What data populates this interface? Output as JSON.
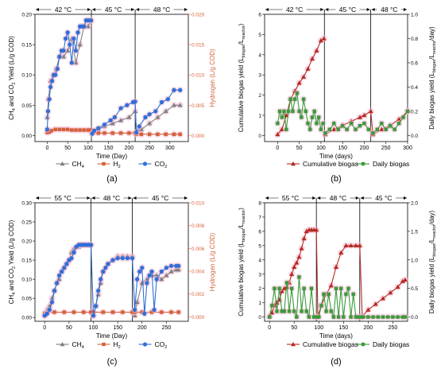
{
  "figure": {
    "panel_labels": [
      "(a)",
      "(b)",
      "(c)",
      "(d)"
    ]
  },
  "colors": {
    "ch4": "#7f7f7f",
    "h2": "#d4603a",
    "co2": "#2f6fd6",
    "cumulative": "#b5291f",
    "daily": "#3a9a3a",
    "halo": "#f3b8d2"
  },
  "chart_data": [
    {
      "id": "a",
      "type": "line",
      "panel": "(a)",
      "xlabel": "Time (Day)",
      "ylabel": "CH4 and CO2 Yield (L/g COD)",
      "ylabel_right": "Hydrogen (L/g COD)",
      "xlim": [
        -30,
        345
      ],
      "xticks": [
        0,
        50,
        100,
        150,
        200,
        250,
        300
      ],
      "ylim": [
        -0.01,
        0.2
      ],
      "yticks": [
        0.0,
        0.05,
        0.1,
        0.15,
        0.2
      ],
      "ylim_right": [
        -0.001,
        0.02
      ],
      "yticks_right": [
        0.0,
        0.005,
        0.01,
        0.015,
        0.02
      ],
      "y_decimals": 2,
      "y_right_decimals": 3,
      "phases": [
        {
          "label": "42 °C",
          "start": -30,
          "end": 108
        },
        {
          "label": "45 °C",
          "start": 108,
          "end": 215
        },
        {
          "label": "48 °C",
          "start": 215,
          "end": 345
        }
      ],
      "dividers": [
        108,
        215
      ],
      "legend": [
        {
          "key": "ch4",
          "label": "CH4"
        },
        {
          "key": "h2",
          "label": "H2"
        },
        {
          "key": "co2",
          "label": "CO2"
        }
      ],
      "series": [
        {
          "key": "ch4",
          "axis": "left",
          "marker": "triangle",
          "x": [
            0,
            3,
            8,
            15,
            22,
            30,
            40,
            50,
            60,
            70,
            80,
            90,
            100,
            107,
            110,
            125,
            140,
            160,
            180,
            200,
            215,
            218,
            230,
            250,
            270,
            290,
            310,
            325
          ],
          "y": [
            0.03,
            0.06,
            0.09,
            0.1,
            0.11,
            0.13,
            0.13,
            0.14,
            0.16,
            0.12,
            0.15,
            0.18,
            0.18,
            0.19,
            0.005,
            0.01,
            0.015,
            0.02,
            0.025,
            0.03,
            0.04,
            0.005,
            0.01,
            0.02,
            0.03,
            0.04,
            0.05,
            0.05
          ]
        },
        {
          "key": "h2",
          "axis": "right",
          "marker": "square",
          "x": [
            0,
            5,
            10,
            20,
            30,
            40,
            50,
            60,
            70,
            80,
            90,
            100,
            107,
            110,
            125,
            140,
            160,
            180,
            200,
            215,
            218,
            230,
            250,
            270,
            290,
            310,
            325
          ],
          "y": [
            0.0005,
            0.0006,
            0.0008,
            0.001,
            0.001,
            0.001,
            0.001,
            0.0009,
            0.0009,
            0.0009,
            0.0009,
            0.0009,
            0.0009,
            0.0004,
            0.0004,
            0.0004,
            0.0004,
            0.0004,
            0.0004,
            0.0004,
            0.0002,
            0.0002,
            0.0002,
            0.0002,
            0.0002,
            0.0002,
            0.0002
          ]
        },
        {
          "key": "co2",
          "axis": "left",
          "marker": "circle",
          "x": [
            0,
            2,
            5,
            8,
            12,
            16,
            20,
            25,
            30,
            35,
            40,
            45,
            50,
            55,
            60,
            65,
            70,
            75,
            80,
            85,
            90,
            95,
            100,
            107,
            110,
            115,
            125,
            140,
            155,
            165,
            180,
            195,
            210,
            215,
            218,
            225,
            240,
            250,
            265,
            280,
            295,
            310,
            325
          ],
          "y": [
            0.01,
            0.04,
            0.06,
            0.08,
            0.09,
            0.1,
            0.1,
            0.11,
            0.13,
            0.14,
            0.14,
            0.16,
            0.17,
            0.15,
            0.12,
            0.16,
            0.14,
            0.17,
            0.18,
            0.18,
            0.18,
            0.19,
            0.19,
            0.19,
            0.003,
            0.008,
            0.012,
            0.018,
            0.025,
            0.03,
            0.045,
            0.05,
            0.055,
            0.056,
            0.005,
            0.015,
            0.03,
            0.035,
            0.04,
            0.055,
            0.06,
            0.075,
            0.075
          ]
        }
      ]
    },
    {
      "id": "b",
      "type": "line",
      "panel": "(b)",
      "xlabel": "Time (days)",
      "ylabel": "Cumulative biogas yield (Lbiogas/Lreactor)",
      "ylabel_right": "Daily biogas yield (Lbiogas/Lreactor/day)",
      "xlim": [
        -30,
        300
      ],
      "xticks": [
        0,
        50,
        100,
        150,
        200,
        250,
        300
      ],
      "ylim": [
        -0.3,
        6
      ],
      "yticks": [
        0,
        1,
        2,
        3,
        4,
        5,
        6
      ],
      "ylim_right": [
        -0.05,
        1.0
      ],
      "yticks_right": [
        0.0,
        0.2,
        0.4,
        0.6,
        0.8,
        1.0
      ],
      "y_decimals": 0,
      "y_right_decimals": 1,
      "phases": [
        {
          "label": "42 °C",
          "start": -30,
          "end": 108
        },
        {
          "label": "45 °C",
          "start": 108,
          "end": 215
        },
        {
          "label": "48 °C",
          "start": 215,
          "end": 300
        }
      ],
      "dividers": [
        108,
        215
      ],
      "legend": [
        {
          "key": "cumulative",
          "label": "Cumulative biogas"
        },
        {
          "key": "daily",
          "label": "Daily biogas"
        }
      ],
      "series": [
        {
          "key": "cumulative",
          "axis": "left",
          "marker": "triangle",
          "x": [
            0,
            10,
            20,
            30,
            40,
            50,
            60,
            70,
            80,
            90,
            100,
            107,
            110,
            130,
            150,
            170,
            190,
            200,
            215,
            220,
            240,
            260,
            280,
            300
          ],
          "y": [
            0.05,
            0.3,
            1.0,
            1.8,
            2.2,
            2.6,
            2.9,
            3.3,
            3.8,
            4.2,
            4.7,
            4.8,
            0.05,
            0.3,
            0.5,
            0.7,
            0.9,
            1.0,
            1.2,
            0.05,
            0.3,
            0.5,
            0.8,
            1.2
          ]
        },
        {
          "key": "daily",
          "axis": "right",
          "marker": "square",
          "x": [
            0,
            5,
            10,
            15,
            20,
            25,
            30,
            35,
            40,
            45,
            50,
            55,
            60,
            65,
            70,
            75,
            80,
            85,
            90,
            95,
            100,
            105,
            110,
            120,
            130,
            140,
            150,
            160,
            170,
            180,
            190,
            200,
            210,
            220,
            230,
            240,
            250,
            260,
            270,
            280,
            290,
            300
          ],
          "y": [
            0.1,
            0.2,
            0.15,
            0.2,
            0.05,
            0.2,
            0.3,
            0.2,
            0.3,
            0.35,
            0.2,
            0.15,
            0.3,
            0.2,
            0.1,
            0.05,
            0.15,
            0.2,
            0.1,
            0.15,
            0.05,
            0.1,
            0.02,
            0.05,
            0.1,
            0.05,
            0.08,
            0.05,
            0.1,
            0.05,
            0.08,
            0.1,
            0.05,
            0.02,
            0.05,
            0.1,
            0.05,
            0.08,
            0.05,
            0.1,
            0.15,
            0.2
          ]
        }
      ]
    },
    {
      "id": "c",
      "type": "line",
      "panel": "(c)",
      "xlabel": "Time (Day)",
      "ylabel": "CH4 and CO2 Yield (L/g COD)",
      "ylabel_right": "Hydrogen (L/g COD)",
      "xlim": [
        -20,
        295
      ],
      "xticks": [
        0,
        50,
        100,
        150,
        200,
        250
      ],
      "ylim": [
        -0.01,
        0.3
      ],
      "yticks": [
        0.0,
        0.05,
        0.1,
        0.15,
        0.2,
        0.25,
        0.3
      ],
      "ylim_right": [
        -0.0004,
        0.01
      ],
      "yticks_right": [
        0.0,
        0.002,
        0.004,
        0.006,
        0.008,
        0.01
      ],
      "y_decimals": 2,
      "y_right_decimals": 3,
      "phases": [
        {
          "label": "55 °C",
          "start": -20,
          "end": 95
        },
        {
          "label": "48 °C",
          "start": 95,
          "end": 180
        },
        {
          "label": "45 °C",
          "start": 180,
          "end": 295
        }
      ],
      "dividers": [
        95,
        180
      ],
      "legend": [
        {
          "key": "ch4",
          "label": "CH4"
        },
        {
          "key": "h2",
          "label": "H2"
        },
        {
          "key": "co2",
          "label": "CO2"
        }
      ],
      "series": [
        {
          "key": "ch4",
          "axis": "left",
          "marker": "triangle",
          "x": [
            0,
            5,
            10,
            15,
            20,
            25,
            30,
            35,
            40,
            45,
            50,
            55,
            60,
            70,
            80,
            90,
            95,
            100,
            105,
            110,
            115,
            120,
            130,
            140,
            150,
            160,
            170,
            180,
            185,
            190,
            200,
            210,
            220,
            230,
            240,
            250,
            260,
            270,
            275
          ],
          "y": [
            0.005,
            0.02,
            0.03,
            0.05,
            0.07,
            0.09,
            0.1,
            0.12,
            0.13,
            0.14,
            0.15,
            0.17,
            0.18,
            0.185,
            0.19,
            0.19,
            0.19,
            0.005,
            0.03,
            0.06,
            0.09,
            0.12,
            0.14,
            0.15,
            0.16,
            0.16,
            0.16,
            0.16,
            0.005,
            0.04,
            0.09,
            0.1,
            0.11,
            0.11,
            0.1,
            0.11,
            0.12,
            0.125,
            0.125
          ]
        },
        {
          "key": "h2",
          "axis": "right",
          "marker": "square",
          "x": [
            0,
            20,
            40,
            60,
            80,
            95,
            100,
            120,
            140,
            160,
            180,
            185,
            200,
            220,
            240,
            260,
            275
          ],
          "y": [
            0.0003,
            0.0004,
            0.0004,
            0.0004,
            0.0004,
            0.0004,
            0.0004,
            0.0004,
            0.0004,
            0.0004,
            0.0004,
            0.0004,
            0.0004,
            0.0004,
            0.0004,
            0.0004,
            0.0004
          ]
        },
        {
          "key": "co2",
          "axis": "left",
          "marker": "circle",
          "x": [
            0,
            5,
            10,
            15,
            20,
            25,
            30,
            35,
            40,
            45,
            50,
            55,
            60,
            65,
            70,
            75,
            80,
            85,
            90,
            95,
            100,
            105,
            110,
            115,
            120,
            125,
            130,
            140,
            150,
            160,
            170,
            180,
            185,
            190,
            195,
            200,
            205,
            210,
            215,
            220,
            225,
            230,
            240,
            250,
            260,
            270,
            275
          ],
          "y": [
            0.005,
            0.01,
            0.02,
            0.04,
            0.07,
            0.09,
            0.11,
            0.12,
            0.13,
            0.14,
            0.15,
            0.155,
            0.17,
            0.185,
            0.19,
            0.19,
            0.19,
            0.19,
            0.19,
            0.19,
            0.005,
            0.03,
            0.07,
            0.1,
            0.12,
            0.13,
            0.14,
            0.15,
            0.155,
            0.155,
            0.155,
            0.155,
            0.02,
            0.1,
            0.12,
            0.13,
            0.01,
            0.09,
            0.11,
            0.12,
            0.02,
            0.1,
            0.12,
            0.13,
            0.135,
            0.135,
            0.135
          ]
        }
      ]
    },
    {
      "id": "d",
      "type": "line",
      "panel": "(d)",
      "xlabel": "Time (days)",
      "ylabel": "Cumulative biogas yield (Lbiogas/Lreactor)",
      "ylabel_right": "Daily biogas yield (Lbiogas/Lreactor/day)",
      "xlim": [
        -10,
        280
      ],
      "xticks": [
        0,
        50,
        100,
        150,
        200,
        250
      ],
      "ylim": [
        -0.3,
        8
      ],
      "yticks": [
        0,
        1,
        2,
        3,
        4,
        5,
        6,
        7,
        8
      ],
      "ylim_right": [
        -0.075,
        2.0
      ],
      "yticks_right": [
        0.0,
        0.5,
        1.0,
        1.5,
        2.0
      ],
      "y_decimals": 0,
      "y_right_decimals": 1,
      "phases": [
        {
          "label": "55 °C",
          "start": -10,
          "end": 95
        },
        {
          "label": "48 °C",
          "start": 95,
          "end": 183
        },
        {
          "label": "45 °C",
          "start": 183,
          "end": 280
        }
      ],
      "dividers": [
        95,
        183
      ],
      "legend": [
        {
          "key": "cumulative",
          "label": "Cumulative biogas"
        },
        {
          "key": "daily",
          "label": "Daily biogas"
        }
      ],
      "series": [
        {
          "key": "cumulative",
          "axis": "left",
          "marker": "triangle",
          "x": [
            0,
            5,
            10,
            15,
            20,
            25,
            30,
            35,
            40,
            45,
            50,
            55,
            60,
            65,
            70,
            75,
            80,
            85,
            90,
            95,
            98,
            105,
            115,
            125,
            135,
            145,
            155,
            165,
            175,
            183,
            188,
            200,
            215,
            230,
            245,
            260,
            270,
            275
          ],
          "y": [
            0.05,
            0.3,
            0.8,
            1.0,
            1.2,
            1.8,
            2.0,
            2.1,
            2.4,
            3.0,
            3.5,
            3.8,
            4.2,
            4.8,
            5.5,
            6.0,
            6.1,
            6.1,
            6.1,
            6.1,
            0.05,
            0.8,
            1.6,
            2.2,
            3.5,
            4.5,
            5.0,
            5.0,
            5.0,
            5.0,
            0.05,
            0.5,
            0.9,
            1.3,
            1.7,
            2.1,
            2.5,
            2.6
          ]
        },
        {
          "key": "daily",
          "axis": "right",
          "marker": "square",
          "x": [
            0,
            5,
            10,
            15,
            20,
            25,
            30,
            35,
            40,
            45,
            50,
            55,
            60,
            65,
            70,
            75,
            80,
            85,
            90,
            95,
            100,
            105,
            110,
            115,
            120,
            125,
            130,
            135,
            140,
            145,
            150,
            155,
            160,
            165,
            170,
            175,
            180,
            185,
            190,
            200,
            210,
            220,
            230,
            240,
            250,
            260,
            270,
            275
          ],
          "y": [
            0.0,
            0.2,
            0.5,
            0.1,
            0.5,
            0.1,
            0.1,
            0.6,
            0.1,
            0.5,
            0.1,
            0.0,
            0.7,
            0.1,
            0.5,
            0.1,
            0.0,
            0.5,
            0.0,
            0.0,
            0.0,
            0.2,
            0.4,
            0.1,
            0.4,
            0.1,
            0.0,
            0.5,
            0.0,
            0.5,
            0.0,
            0.4,
            0.5,
            0.0,
            0.4,
            0.0,
            0.0,
            0.0,
            0.0,
            0.0,
            0.0,
            0.0,
            0.0,
            0.0,
            0.0,
            0.0,
            0.0,
            0.0
          ]
        }
      ]
    }
  ]
}
